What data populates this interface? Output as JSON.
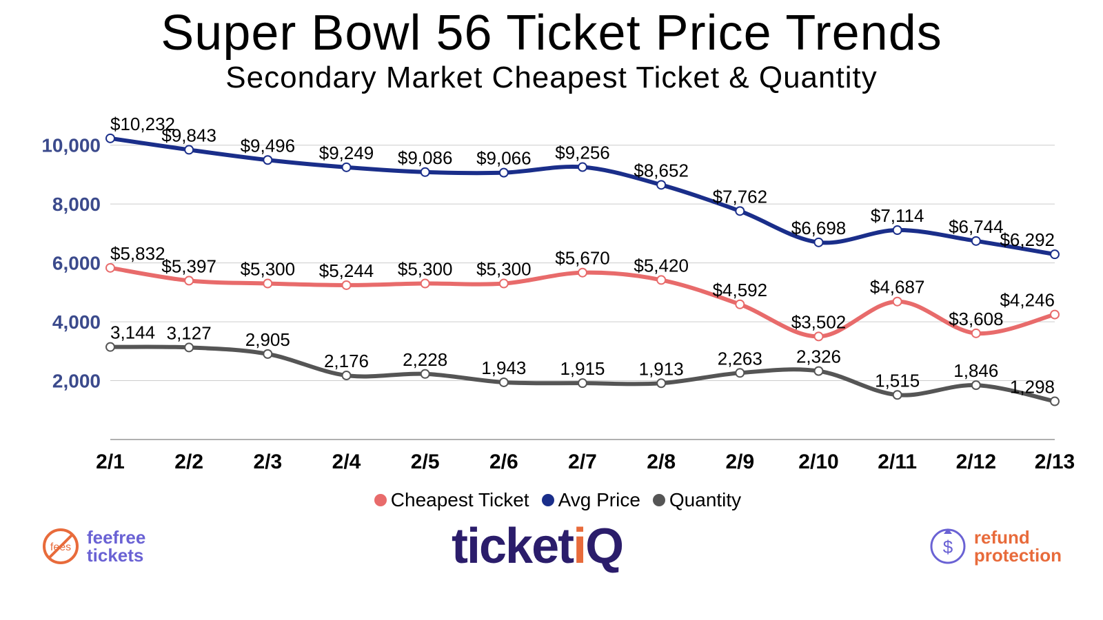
{
  "title": "Super Bowl 56 Ticket Price Trends",
  "subtitle": "Secondary Market Cheapest Ticket & Quantity",
  "chart": {
    "type": "line",
    "background_color": "#ffffff",
    "grid_color": "#cccccc",
    "axis_color": "#b0b0b0",
    "axis_label_color": "#3b4a8c",
    "xtick_label_color": "#000000",
    "value_label_color": "#000000",
    "title_fontsize": 72,
    "subtitle_fontsize": 44,
    "axis_fontsize": 28,
    "xtick_fontsize": 30,
    "value_label_fontsize": 26,
    "line_width": 6,
    "marker_radius": 6,
    "marker_fill": "#ffffff",
    "ylim": [
      0,
      11000
    ],
    "yticks": [
      2000,
      4000,
      6000,
      8000,
      10000
    ],
    "ytick_labels": [
      "2,000",
      "4,000",
      "6,000",
      "8,000",
      "10,000"
    ],
    "categories": [
      "2/1",
      "2/2",
      "2/3",
      "2/4",
      "2/5",
      "2/6",
      "2/7",
      "2/8",
      "2/9",
      "2/10",
      "2/11",
      "2/12",
      "2/13"
    ],
    "series": [
      {
        "name": "Avg Price",
        "color": "#1a2e8a",
        "values": [
          10232,
          9843,
          9496,
          9249,
          9086,
          9066,
          9256,
          8652,
          7762,
          6698,
          7114,
          6744,
          6292
        ],
        "labels": [
          "$10,232",
          "$9,843",
          "$9,496",
          "$9,249",
          "$9,086",
          "$9,066",
          "$9,256",
          "$8,652",
          "$7,762",
          "$6,698",
          "$7,114",
          "$6,744",
          "$6,292"
        ]
      },
      {
        "name": "Cheapest Ticket",
        "color": "#e86b6b",
        "values": [
          5832,
          5397,
          5300,
          5244,
          5300,
          5300,
          5670,
          5420,
          4592,
          3502,
          4687,
          3608,
          4246
        ],
        "labels": [
          "$5,832",
          "$5,397",
          "$5,300",
          "$5,244",
          "$5,300",
          "$5,300",
          "$5,670",
          "$5,420",
          "$4,592",
          "$3,502",
          "$4,687",
          "$3,608",
          "$4,246"
        ]
      },
      {
        "name": "Quantity",
        "color": "#555555",
        "values": [
          3144,
          3127,
          2905,
          2176,
          2228,
          1943,
          1915,
          1913,
          2263,
          2326,
          1515,
          1846,
          1298
        ],
        "labels": [
          "3,144",
          "3,127",
          "2,905",
          "2,176",
          "2,228",
          "1,943",
          "1,915",
          "1,913",
          "2,263",
          "2,326",
          "1,515",
          "1,846",
          "1,298"
        ]
      }
    ],
    "legend_order": [
      "Cheapest Ticket",
      "Avg Price",
      "Quantity"
    ]
  },
  "logos": {
    "left": {
      "line1": "feefree",
      "line2": "tickets",
      "color": "#6a62d4",
      "icon_color": "#e86b3b",
      "icon_text": "fees"
    },
    "center": {
      "text_a": "ticket",
      "text_b": "i",
      "text_c": "Q",
      "color_main": "#2b1d6b",
      "color_accent": "#e86b3b"
    },
    "right": {
      "line1": "refund",
      "line2": "protection",
      "color": "#e86b3b",
      "icon_color": "#6a62d4",
      "icon_text": "$"
    }
  }
}
